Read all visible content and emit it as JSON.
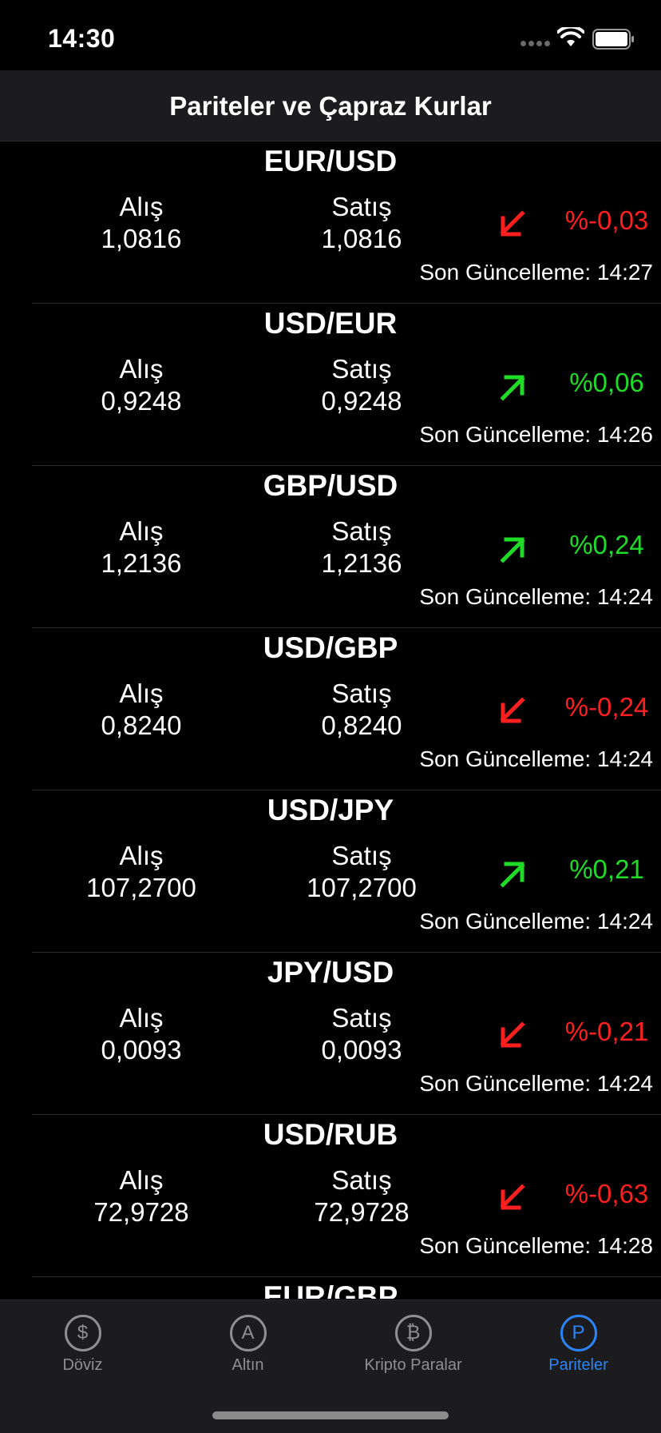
{
  "status_bar": {
    "time": "14:30"
  },
  "nav": {
    "title": "Pariteler ve Çapraz Kurlar"
  },
  "labels": {
    "buy": "Alış",
    "sell": "Satış"
  },
  "colors": {
    "down": "#ff1f1f",
    "up": "#1fdc27",
    "accent": "#2d84f6"
  },
  "rows": [
    {
      "pair": "EUR/USD",
      "buy": "1,0816",
      "sell": "1,0816",
      "direction": "down",
      "change": "%-0,03",
      "updated": "Son Güncelleme: 14:27"
    },
    {
      "pair": "USD/EUR",
      "buy": "0,9248",
      "sell": "0,9248",
      "direction": "up",
      "change": "%0,06",
      "updated": "Son Güncelleme: 14:26"
    },
    {
      "pair": "GBP/USD",
      "buy": "1,2136",
      "sell": "1,2136",
      "direction": "up",
      "change": "%0,24",
      "updated": "Son Güncelleme: 14:24"
    },
    {
      "pair": "USD/GBP",
      "buy": "0,8240",
      "sell": "0,8240",
      "direction": "down",
      "change": "%-0,24",
      "updated": "Son Güncelleme: 14:24"
    },
    {
      "pair": "USD/JPY",
      "buy": "107,2700",
      "sell": "107,2700",
      "direction": "up",
      "change": "%0,21",
      "updated": "Son Güncelleme: 14:24"
    },
    {
      "pair": "JPY/USD",
      "buy": "0,0093",
      "sell": "0,0093",
      "direction": "down",
      "change": "%-0,21",
      "updated": "Son Güncelleme: 14:24"
    },
    {
      "pair": "USD/RUB",
      "buy": "72,9728",
      "sell": "72,9728",
      "direction": "down",
      "change": "%-0,63",
      "updated": "Son Güncelleme: 14:28"
    }
  ],
  "partial_row": {
    "pair": "EUR/GBP"
  },
  "tabs": [
    {
      "label": "Döviz",
      "symbol": "$",
      "icon": "dollar-circle-icon",
      "active": false
    },
    {
      "label": "Altın",
      "symbol": "A",
      "icon": "gold-circle-icon",
      "active": false
    },
    {
      "label": "Kripto Paralar",
      "symbol": "₿",
      "icon": "bitcoin-circle-icon",
      "active": false
    },
    {
      "label": "Pariteler",
      "symbol": "P",
      "icon": "parity-circle-icon",
      "active": true
    }
  ]
}
